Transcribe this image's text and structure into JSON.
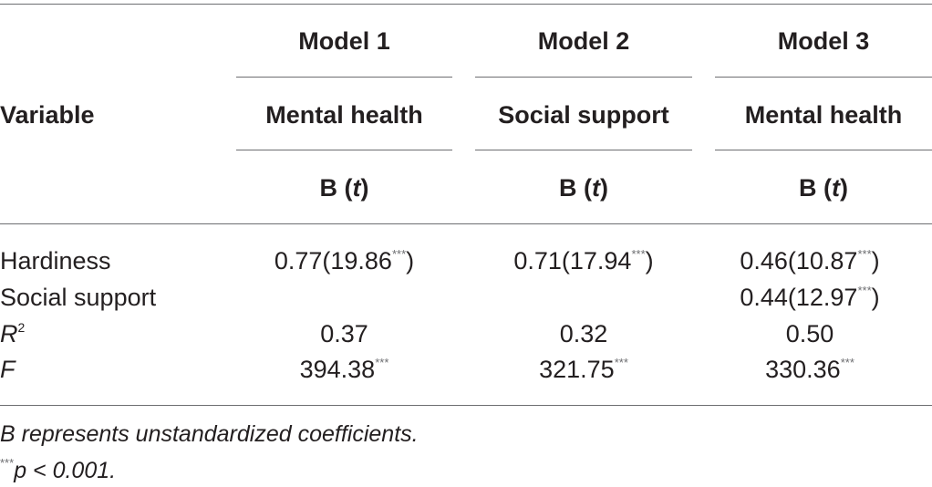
{
  "table": {
    "header": {
      "variable": "Variable",
      "models": [
        {
          "label": "Model 1",
          "outcome": "Mental health",
          "coef_b": "B (",
          "coef_t": "t",
          "coef_close": ")"
        },
        {
          "label": "Model 2",
          "outcome": "Social support",
          "coef_b": "B (",
          "coef_t": "t",
          "coef_close": ")"
        },
        {
          "label": "Model 3",
          "outcome": "Mental health",
          "coef_b": "B (",
          "coef_t": "t",
          "coef_close": ")"
        }
      ]
    },
    "rows": [
      {
        "label": "Hardiness",
        "label_sup": "",
        "cells": [
          {
            "value": "0.77(19.86",
            "sig": "***",
            "close": ")"
          },
          {
            "value": "0.71(17.94",
            "sig": "***",
            "close": ")"
          },
          {
            "value": "0.46(10.87",
            "sig": "***",
            "close": ")"
          }
        ]
      },
      {
        "label": "Social support",
        "label_sup": "",
        "cells": [
          {
            "value": "",
            "sig": "",
            "close": ""
          },
          {
            "value": "",
            "sig": "",
            "close": ""
          },
          {
            "value": "0.44(12.97",
            "sig": "***",
            "close": ")"
          }
        ]
      },
      {
        "label": "R",
        "label_sup": "2",
        "cells": [
          {
            "value": "0.37",
            "sig": "",
            "close": ""
          },
          {
            "value": "0.32",
            "sig": "",
            "close": ""
          },
          {
            "value": "0.50",
            "sig": "",
            "close": ""
          }
        ]
      },
      {
        "label": "F",
        "label_sup": "",
        "cells": [
          {
            "value": "394.38",
            "sig": "***",
            "close": ""
          },
          {
            "value": "321.75",
            "sig": "***",
            "close": ""
          },
          {
            "value": "330.36",
            "sig": "***",
            "close": ""
          }
        ]
      }
    ],
    "notes": {
      "line1": "B represents unstandardized coefficients.",
      "sig_marker": "***",
      "line2": "p < 0.001."
    }
  },
  "colors": {
    "text": "#231f20",
    "rule": "#6d6e71"
  }
}
